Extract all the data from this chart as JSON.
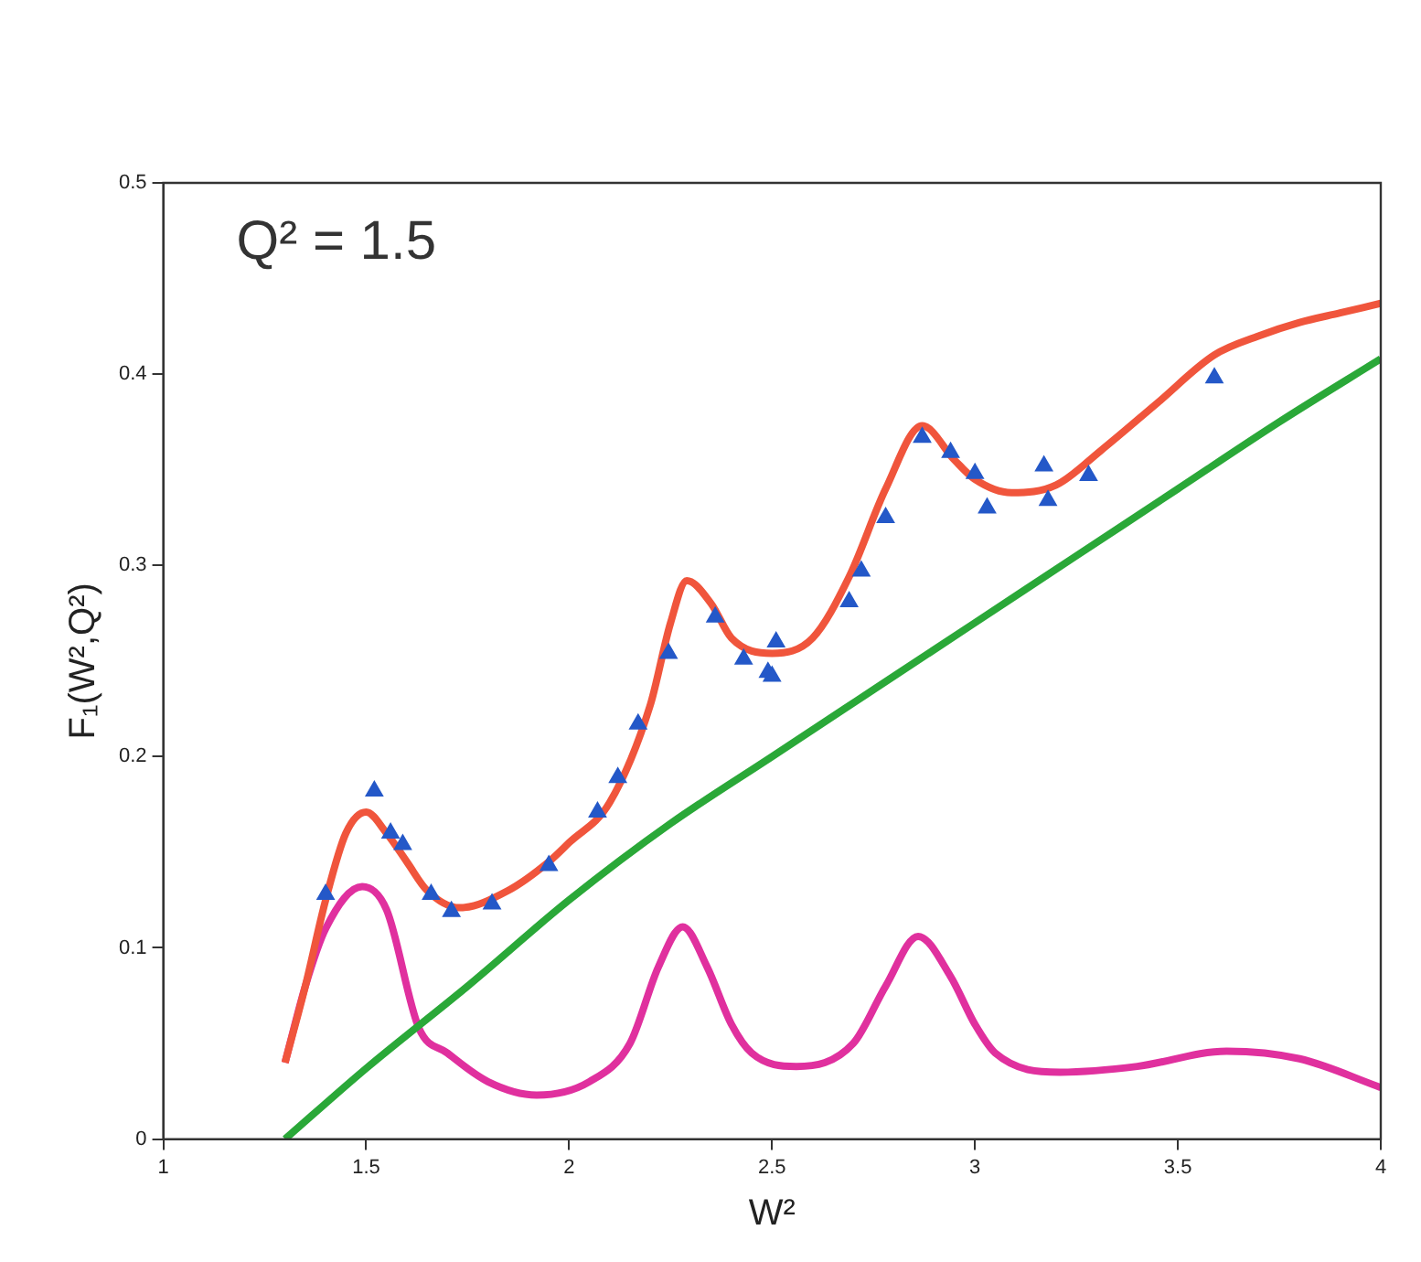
{
  "chart_data": {
    "type": "line",
    "xlabel": "W²",
    "ylabel": "F₁(W²,Q²)",
    "annotations": [
      "Q² = 1.5"
    ],
    "xlim": [
      1,
      4
    ],
    "xticks": [
      1,
      1.5,
      2,
      2.5,
      3,
      3.5,
      4
    ],
    "ylim": [
      0,
      0.5
    ],
    "yticks": [
      0,
      0.1,
      0.2,
      0.3,
      0.4,
      0.5
    ],
    "grid": false,
    "legend": false,
    "line_style": "solid",
    "series": [
      {
        "type": "line",
        "color": "#f0553c",
        "marker": "none",
        "x": [
          1.3,
          1.35,
          1.4,
          1.45,
          1.5,
          1.55,
          1.6,
          1.65,
          1.73,
          1.85,
          1.95,
          2.0,
          2.1,
          2.2,
          2.25,
          2.29,
          2.35,
          2.4,
          2.5,
          2.6,
          2.69,
          2.78,
          2.87,
          2.95,
          3.0,
          3.09,
          3.2,
          3.31,
          3.45,
          3.59,
          3.7,
          3.8,
          3.9,
          4.0
        ],
        "values": [
          0.04,
          0.08,
          0.125,
          0.16,
          0.171,
          0.16,
          0.145,
          0.13,
          0.121,
          0.13,
          0.145,
          0.155,
          0.176,
          0.227,
          0.27,
          0.292,
          0.28,
          0.262,
          0.254,
          0.262,
          0.294,
          0.34,
          0.373,
          0.355,
          0.345,
          0.338,
          0.342,
          0.36,
          0.385,
          0.41,
          0.42,
          0.427,
          0.432,
          0.437
        ]
      },
      {
        "type": "line",
        "color": "#2aa838",
        "marker": "none",
        "x": [
          1.3,
          1.5,
          1.75,
          2.0,
          2.25,
          2.5,
          2.75,
          3.0,
          3.25,
          3.5,
          3.75,
          4.0
        ],
        "values": [
          0,
          0.037,
          0.08,
          0.125,
          0.165,
          0.2,
          0.235,
          0.27,
          0.305,
          0.34,
          0.375,
          0.408
        ]
      },
      {
        "type": "line",
        "color": "#e0309e",
        "marker": "none",
        "x": [
          1.3,
          1.35,
          1.4,
          1.49,
          1.55,
          1.63,
          1.7,
          1.8,
          1.92,
          2.05,
          2.15,
          2.22,
          2.28,
          2.34,
          2.4,
          2.45,
          2.56,
          2.7,
          2.78,
          2.86,
          2.94,
          3.0,
          3.05,
          3.21,
          3.4,
          3.62,
          3.8,
          4.0
        ],
        "values": [
          0.04,
          0.08,
          0.11,
          0.132,
          0.12,
          0.058,
          0.045,
          0.03,
          0.023,
          0.03,
          0.05,
          0.09,
          0.111,
          0.09,
          0.06,
          0.045,
          0.038,
          0.05,
          0.08,
          0.106,
          0.085,
          0.06,
          0.045,
          0.035,
          0.038,
          0.046,
          0.042,
          0.027
        ]
      },
      {
        "type": "scatter",
        "color": "#2458c8",
        "marker": "triangle",
        "x": [
          1.4,
          1.52,
          1.56,
          1.59,
          1.66,
          1.71,
          1.81,
          1.95,
          2.07,
          2.12,
          2.17,
          2.245,
          2.36,
          2.43,
          2.49,
          2.5,
          2.51,
          2.69,
          2.72,
          2.78,
          2.87,
          2.94,
          3.0,
          3.03,
          3.17,
          3.18,
          3.28,
          3.59
        ],
        "values": [
          0.128,
          0.182,
          0.16,
          0.154,
          0.128,
          0.119,
          0.123,
          0.143,
          0.171,
          0.189,
          0.217,
          0.254,
          0.273,
          0.251,
          0.244,
          0.242,
          0.26,
          0.281,
          0.297,
          0.325,
          0.367,
          0.359,
          0.348,
          0.33,
          0.352,
          0.334,
          0.347,
          0.398
        ]
      }
    ]
  }
}
